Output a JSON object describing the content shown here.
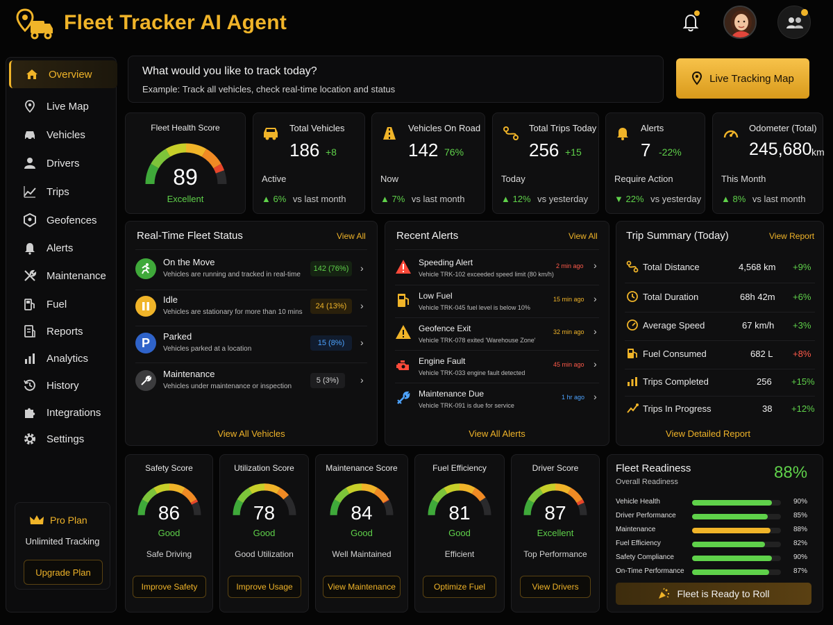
{
  "header": {
    "title": "Fleet Tracker AI Agent"
  },
  "sidebar": {
    "items": [
      {
        "label": "Overview"
      },
      {
        "label": "Live Map"
      },
      {
        "label": "Vehicles"
      },
      {
        "label": "Drivers"
      },
      {
        "label": "Trips"
      },
      {
        "label": "Geofences"
      },
      {
        "label": "Alerts"
      },
      {
        "label": "Maintenance"
      },
      {
        "label": "Fuel"
      },
      {
        "label": "Reports"
      },
      {
        "label": "Analytics"
      },
      {
        "label": "History"
      },
      {
        "label": "Integrations"
      },
      {
        "label": "Settings"
      }
    ],
    "plan": {
      "name": "Pro Plan",
      "desc": "Unlimited Tracking",
      "button": "Upgrade Plan"
    }
  },
  "prompt": {
    "question": "What would you like to track today?",
    "example": "Example: Track all vehicles, check real-time location and status",
    "button": "Live Tracking Map"
  },
  "health": {
    "title": "Fleet Health Score",
    "value": "89",
    "label": "Excellent",
    "level": 0.89
  },
  "stats": [
    {
      "title": "Total Vehicles",
      "value": "186",
      "delta": "+8",
      "sub": "Active",
      "foot_pct": "6%",
      "foot_text": "vs last month",
      "foot_dir": "up"
    },
    {
      "title": "Vehicles On Road",
      "value": "142",
      "delta": "76%",
      "sub": "Now",
      "foot_pct": "7%",
      "foot_text": "vs last month",
      "foot_dir": "up"
    },
    {
      "title": "Total Trips Today",
      "value": "256",
      "delta": "+15",
      "sub": "Today",
      "foot_pct": "12%",
      "foot_text": "vs yesterday",
      "foot_dir": "up"
    },
    {
      "title": "Alerts",
      "value": "7",
      "delta": "-22%",
      "sub": "Require Action",
      "foot_pct": "22%",
      "foot_text": "vs yesterday",
      "foot_dir": "down"
    },
    {
      "title": "Odometer (Total)",
      "value": "245,680",
      "unit": "km",
      "sub": "This Month",
      "foot_pct": "8%",
      "foot_text": "vs last month",
      "foot_dir": "up"
    }
  ],
  "fleet_status": {
    "title": "Real-Time Fleet Status",
    "link": "View All",
    "footer": "View All Vehicles",
    "rows": [
      {
        "name": "On the Move",
        "desc": "Vehicles are running and tracked in real-time",
        "count": "142 (76%)",
        "color": "#3fa93a"
      },
      {
        "name": "Idle",
        "desc": "Vehicles are stationary for more than 10 mins",
        "count": "24 (13%)",
        "color": "#f0b429"
      },
      {
        "name": "Parked",
        "desc": "Vehicles parked at a location",
        "count": "15 (8%)",
        "color": "#2f63c9"
      },
      {
        "name": "Maintenance",
        "desc": "Vehicles under maintenance or inspection",
        "count": "5 (3%)",
        "color": "#5a5a5a"
      }
    ]
  },
  "alerts": {
    "title": "Recent Alerts",
    "link": "View All",
    "footer": "View All Alerts",
    "rows": [
      {
        "name": "Speeding Alert",
        "desc": "Vehicle TRK-102 exceeded speed limit (80 km/h)",
        "time": "2 min ago",
        "color": "#ff4a3a"
      },
      {
        "name": "Low Fuel",
        "desc": "Vehicle TRK-045 fuel level is below 10%",
        "time": "15 min ago",
        "color": "#f0b429"
      },
      {
        "name": "Geofence Exit",
        "desc": "Vehicle TRK-078 exited 'Warehouse Zone'",
        "time": "32 min ago",
        "color": "#f0b429"
      },
      {
        "name": "Engine Fault",
        "desc": "Vehicle TRK-033 engine fault detected",
        "time": "45 min ago",
        "color": "#ff4a3a"
      },
      {
        "name": "Maintenance Due",
        "desc": "Vehicle TRK-091 is due for service",
        "time": "1 hr ago",
        "color": "#4da3ff"
      }
    ]
  },
  "trip_summary": {
    "title": "Trip Summary (Today)",
    "link": "View Report",
    "footer": "View Detailed Report",
    "rows": [
      {
        "name": "Total Distance",
        "value": "4,568 km",
        "delta": "+9%",
        "positive": true
      },
      {
        "name": "Total Duration",
        "value": "68h 42m",
        "delta": "+6%",
        "positive": true
      },
      {
        "name": "Average Speed",
        "value": "67 km/h",
        "delta": "+3%",
        "positive": true
      },
      {
        "name": "Fuel Consumed",
        "value": "682 L",
        "delta": "+8%",
        "positive": false
      },
      {
        "name": "Trips Completed",
        "value": "256",
        "delta": "+15%",
        "positive": true
      },
      {
        "name": "Trips In Progress",
        "value": "38",
        "delta": "+12%",
        "positive": true
      }
    ]
  },
  "scores": [
    {
      "title": "Safety Score",
      "value": "86",
      "label": "Good",
      "desc": "Safe Driving",
      "button": "Improve Safety",
      "level": 0.86,
      "label_color": "#5fd14a"
    },
    {
      "title": "Utilization Score",
      "value": "78",
      "label": "Good",
      "desc": "Good Utilization",
      "button": "Improve Usage",
      "level": 0.78,
      "label_color": "#5fd14a"
    },
    {
      "title": "Maintenance Score",
      "value": "84",
      "label": "Good",
      "desc": "Well Maintained",
      "button": "View Maintenance",
      "level": 0.84,
      "label_color": "#5fd14a"
    },
    {
      "title": "Fuel Efficiency",
      "value": "81",
      "label": "Good",
      "desc": "Efficient",
      "button": "Optimize Fuel",
      "level": 0.81,
      "label_color": "#5fd14a"
    },
    {
      "title": "Driver Score",
      "value": "87",
      "label": "Excellent",
      "desc": "Top Performance",
      "button": "View Drivers",
      "level": 0.87,
      "label_color": "#5fd14a"
    }
  ],
  "readiness": {
    "title": "Fleet Readiness",
    "subtitle": "Overall Readiness",
    "value": "88%",
    "button": "Fleet is Ready to Roll",
    "rows": [
      {
        "name": "Vehicle Health",
        "pct": "90%",
        "level": 0.9,
        "color": "#5fd14a"
      },
      {
        "name": "Driver Performance",
        "pct": "85%",
        "level": 0.85,
        "color": "#5fd14a"
      },
      {
        "name": "Maintenance",
        "pct": "88%",
        "level": 0.88,
        "color": "#f0b429"
      },
      {
        "name": "Fuel Efficiency",
        "pct": "82%",
        "level": 0.82,
        "color": "#5fd14a"
      },
      {
        "name": "Safety Compliance",
        "pct": "90%",
        "level": 0.9,
        "color": "#5fd14a"
      },
      {
        "name": "On-Time Performance",
        "pct": "87%",
        "level": 0.87,
        "color": "#5fd14a"
      }
    ]
  }
}
